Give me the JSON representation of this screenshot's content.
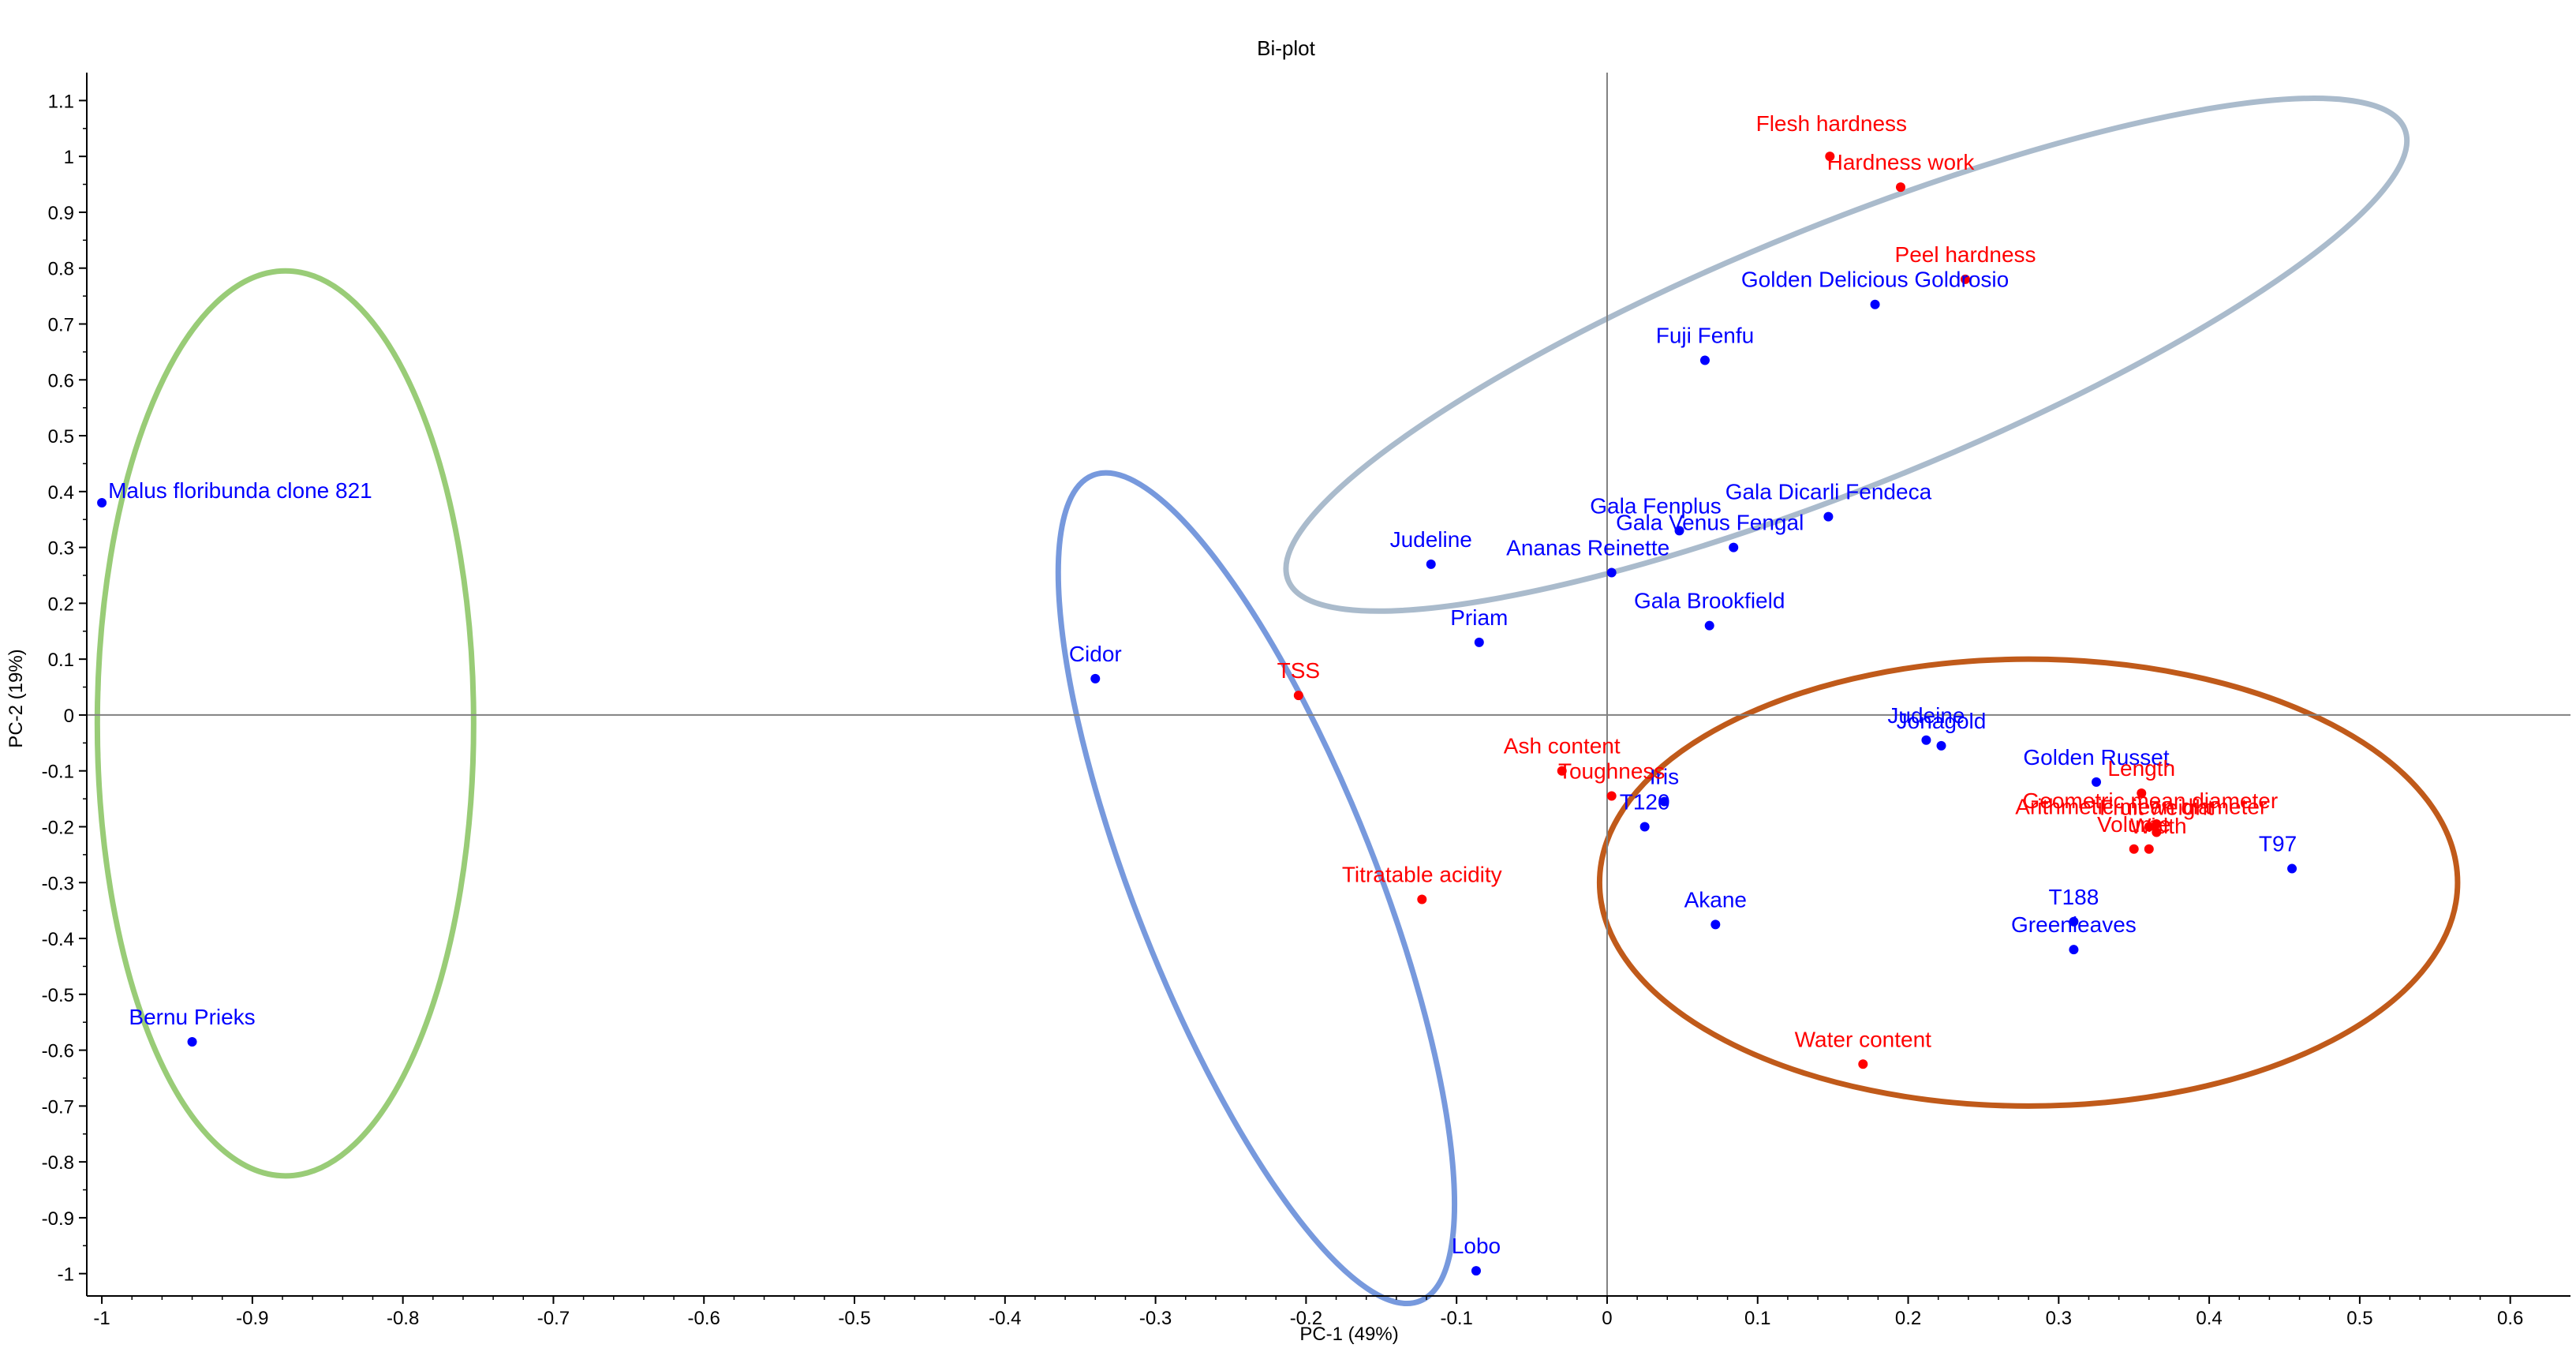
{
  "chart_data": {
    "type": "scatter",
    "title": "Bi-plot",
    "xlabel": "PC-1 (49%)",
    "ylabel": "PC-2 (19%)",
    "xlim": [
      -1.01,
      0.64
    ],
    "ylim": [
      -1.04,
      1.15
    ],
    "x_ticks": [
      -1,
      -0.9,
      -0.8,
      -0.7,
      -0.6,
      -0.5,
      -0.4,
      -0.3,
      -0.2,
      -0.1,
      0,
      0.1,
      0.2,
      0.3,
      0.4,
      0.5,
      0.6
    ],
    "x_tick_labels": [
      "-1",
      "-0.9",
      "-0.8",
      "-0.7",
      "-0.6",
      "-0.5",
      "-0.4",
      "-0.3",
      "-0.2",
      "-0.1",
      "0",
      "0.1",
      "0.2",
      "0.3",
      "0.4",
      "0.5",
      "0.6"
    ],
    "y_ticks": [
      1.1,
      1,
      0.9,
      0.8,
      0.7,
      0.6,
      0.5,
      0.4,
      0.3,
      0.2,
      0.1,
      0,
      -0.1,
      -0.2,
      -0.3,
      -0.4,
      -0.5,
      -0.6,
      -0.7,
      -0.8,
      -0.9,
      -1
    ],
    "y_tick_labels": [
      "1.1",
      "1",
      "0.9",
      "0.8",
      "0.7",
      "0.6",
      "0.5",
      "0.4",
      "0.3",
      "0.2",
      "0.1",
      "0",
      "-0.1",
      "-0.2",
      "-0.3",
      "-0.4",
      "-0.5",
      "-0.6",
      "-0.7",
      "-0.8",
      "-0.9",
      "-1"
    ],
    "colors": {
      "samples": "#0000ff",
      "variables": "#ff0000",
      "axes": "#000000",
      "zero_lines": "#808080"
    },
    "series": [
      {
        "name": "samples",
        "points": [
          {
            "label": "Malus floribunda clone 821",
            "x": -1.0,
            "y": 0.38
          },
          {
            "label": "Bernu Prieks",
            "x": -0.94,
            "y": -0.585
          },
          {
            "label": "Cidor",
            "x": -0.34,
            "y": 0.065
          },
          {
            "label": "Lobo",
            "x": -0.087,
            "y": -0.995
          },
          {
            "label": "Judeline",
            "x": -0.117,
            "y": 0.27
          },
          {
            "label": "Priam",
            "x": -0.085,
            "y": 0.13
          },
          {
            "label": "Ananas Reinette",
            "x": 0.003,
            "y": 0.255
          },
          {
            "label": "Gala Fenplus",
            "x": 0.048,
            "y": 0.33
          },
          {
            "label": "Gala Venus Fengal",
            "x": 0.084,
            "y": 0.3
          },
          {
            "label": "Gala Dicarli Fendeca",
            "x": 0.147,
            "y": 0.355
          },
          {
            "label": "Gala Brookfield",
            "x": 0.068,
            "y": 0.16
          },
          {
            "label": "Fuji Fenfu",
            "x": 0.065,
            "y": 0.635
          },
          {
            "label": "Golden Delicious Goldrosio",
            "x": 0.178,
            "y": 0.735
          },
          {
            "label": "Judeine",
            "x": 0.212,
            "y": -0.045
          },
          {
            "label": "Jonagold",
            "x": 0.222,
            "y": -0.055
          },
          {
            "label": "Iris",
            "x": 0.038,
            "y": -0.155
          },
          {
            "label": "T120",
            "x": 0.025,
            "y": -0.2
          },
          {
            "label": "Golden Russet",
            "x": 0.325,
            "y": -0.12
          },
          {
            "label": "T97",
            "x": 0.455,
            "y": -0.275
          },
          {
            "label": "T188",
            "x": 0.31,
            "y": -0.37
          },
          {
            "label": "Greenleaves",
            "x": 0.31,
            "y": -0.42
          },
          {
            "label": "Akane",
            "x": 0.072,
            "y": -0.375
          }
        ]
      },
      {
        "name": "variables",
        "points": [
          {
            "label": "Flesh hardness",
            "x": 0.148,
            "y": 1.0
          },
          {
            "label": "Hardness work",
            "x": 0.195,
            "y": 0.945
          },
          {
            "label": "Peel hardness",
            "x": 0.238,
            "y": 0.78
          },
          {
            "label": "TSS",
            "x": -0.205,
            "y": 0.035
          },
          {
            "label": "Ash content",
            "x": -0.03,
            "y": -0.1
          },
          {
            "label": "Toughness",
            "x": 0.003,
            "y": -0.145
          },
          {
            "label": "Titratable acidity",
            "x": -0.123,
            "y": -0.33
          },
          {
            "label": "Water content",
            "x": 0.17,
            "y": -0.625
          },
          {
            "label": "Length",
            "x": 0.355,
            "y": -0.14
          },
          {
            "label": "Geometric mean diameter",
            "x": 0.365,
            "y": -0.195
          },
          {
            "label": "Fruit weight",
            "x": 0.365,
            "y": -0.21
          },
          {
            "label": "Arithmetic mean diameter",
            "x": 0.36,
            "y": -0.2
          },
          {
            "label": "Volume",
            "x": 0.35,
            "y": -0.24
          },
          {
            "label": "Width",
            "x": 0.36,
            "y": -0.24
          }
        ]
      }
    ],
    "ellipses": [
      {
        "name": "green",
        "color": "#99cc77",
        "cx": -0.878,
        "cy": -0.015,
        "rx": 0.125,
        "ry": 0.81,
        "rotation": 0
      },
      {
        "name": "blue",
        "color": "#7799dd",
        "cx": -0.233,
        "cy": -0.31,
        "rx": 0.08,
        "ry": 0.795,
        "rotation": -21.6
      },
      {
        "name": "grey",
        "color": "#aabbcc",
        "cx": 0.159,
        "cy": 0.645,
        "rx": 0.4,
        "ry": 0.235,
        "rotation": -22
      },
      {
        "name": "brown",
        "color": "#c05a1a",
        "cx": 0.28,
        "cy": -0.3,
        "rx": 0.285,
        "ry": 0.4,
        "rotation": 0
      }
    ]
  }
}
